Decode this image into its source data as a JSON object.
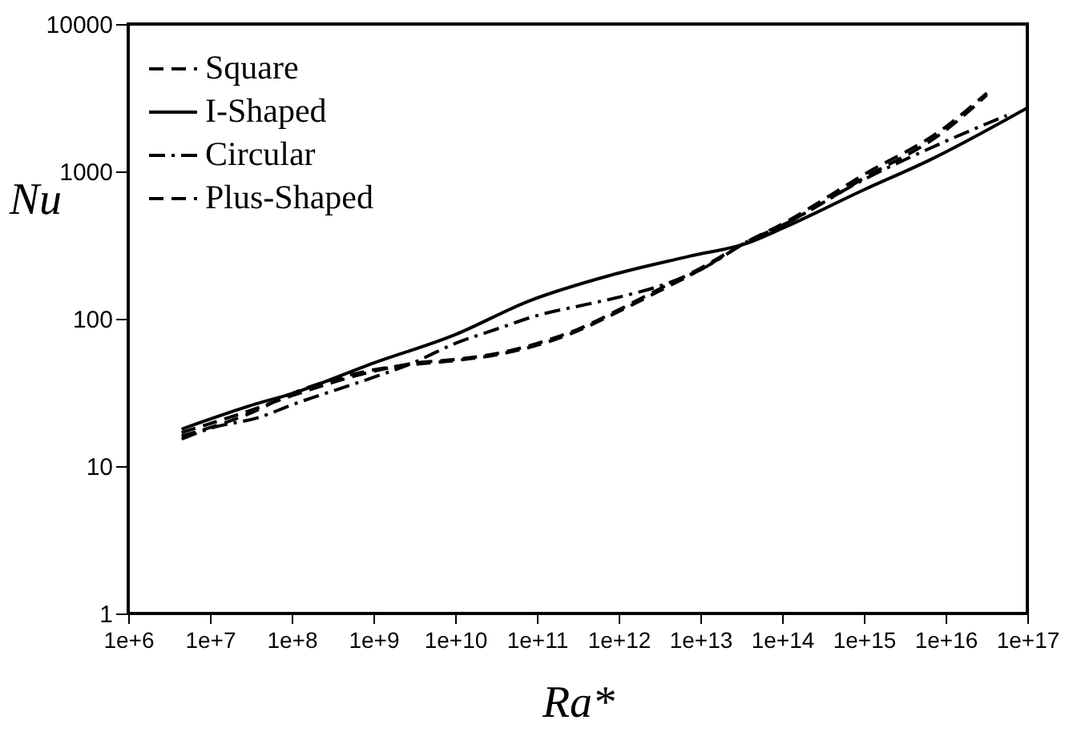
{
  "chart_data": {
    "type": "line",
    "xlabel": "Ra*",
    "ylabel": "Nu",
    "log": "xy",
    "grid": false,
    "legend": "top left",
    "xlim": [
      1000000.0,
      1e+17
    ],
    "ylim": [
      1,
      10000
    ],
    "xticks": [
      {
        "value": 1000000.0,
        "label": "1e+6"
      },
      {
        "value": 10000000.0,
        "label": "1e+7"
      },
      {
        "value": 100000000.0,
        "label": "1e+8"
      },
      {
        "value": 1000000000.0,
        "label": "1e+9"
      },
      {
        "value": 10000000000.0,
        "label": "1e+10"
      },
      {
        "value": 100000000000.0,
        "label": "1e+11"
      },
      {
        "value": 1000000000000.0,
        "label": "1e+12"
      },
      {
        "value": 10000000000000.0,
        "label": "1e+13"
      },
      {
        "value": 100000000000000.0,
        "label": "1e+14"
      },
      {
        "value": 1000000000000000.0,
        "label": "1e+15"
      },
      {
        "value": 1e+16,
        "label": "1e+16"
      },
      {
        "value": 1e+17,
        "label": "1e+17"
      }
    ],
    "yticks": [
      1,
      10,
      100,
      1000,
      10000
    ],
    "series": [
      {
        "name": "Square",
        "color": "#000000",
        "line_style": "dashed",
        "x": [
          4500000.0,
          32000000.0,
          100000000.0,
          1000000000.0,
          3200000000.0,
          10000000000.0,
          32000000000.0,
          100000000000.0,
          320000000000.0,
          1000000000000.0,
          3200000000000.0,
          10000000000000.0,
          40000000000000.0,
          100000000000000.0,
          1000000000000000.0,
          1e+16,
          3.2e+16
        ],
        "values": [
          16.9,
          24,
          30,
          44,
          50,
          53,
          58,
          68,
          85,
          115,
          160,
          220,
          340,
          430,
          900,
          1900,
          3300
        ]
      },
      {
        "name": "I-Shaped",
        "color": "#000000",
        "line_style": "solid",
        "x": [
          4500000.0,
          37000000.0,
          100000000.0,
          1000000000.0,
          10000000000.0,
          80000000000.0,
          760000000000.0,
          7200000000000.0,
          40000000000000.0,
          100000000000000.0,
          1000000000000000.0,
          6300000000000000.0,
          1e+17
        ],
        "values": [
          17.8,
          26.5,
          31,
          50,
          78,
          132,
          196,
          265,
          330,
          410,
          750,
          1190,
          2700
        ]
      },
      {
        "name": "Circular",
        "color": "#000000",
        "line_style": "dashdot",
        "x": [
          4500000.0,
          10000000.0,
          43000000.0,
          100000000.0,
          1000000000.0,
          3000000000.0,
          10000000000.0,
          32000000000.0,
          100000000000.0,
          400000000000.0,
          1000000000000.0,
          3400000000000.0,
          10000000000000.0,
          40000000000000.0,
          100000000000000.0,
          1000000000000000.0,
          1e+16,
          5.6e+16
        ],
        "values": [
          15.3,
          18,
          21.7,
          26,
          40,
          50,
          68,
          85,
          105,
          125,
          140,
          169,
          215,
          340,
          430,
          880,
          1600,
          2400
        ]
      },
      {
        "name": "Plus-Shaped",
        "color": "#000000",
        "line_style": "dashed",
        "x": [
          4500000.0,
          32000000.0,
          100000000.0,
          1000000000.0,
          3200000000.0,
          10000000000.0,
          32000000000.0,
          100000000000.0,
          320000000000.0,
          1000000000000.0,
          3200000000000.0,
          10000000000000.0,
          40000000000000.0,
          100000000000000.0,
          1000000000000000.0,
          1e+16,
          3.2e+16
        ],
        "values": [
          16,
          23,
          31,
          45,
          49,
          52,
          57,
          66,
          83,
          112,
          155,
          215,
          340,
          440,
          950,
          2000,
          3400
        ]
      }
    ]
  }
}
